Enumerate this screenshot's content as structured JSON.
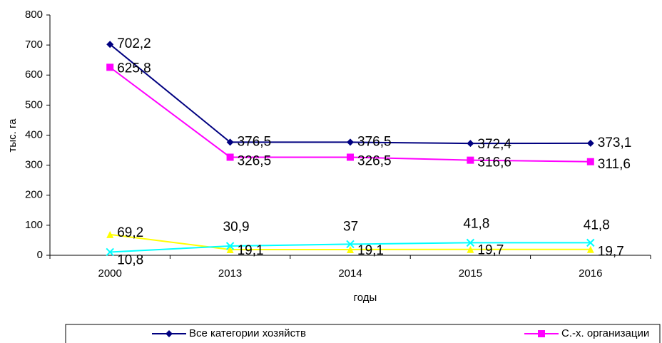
{
  "chart_data": {
    "type": "line",
    "y_label": "тыс. га",
    "x_label": "годы",
    "categories": [
      "2000",
      "2013",
      "2014",
      "2015",
      "2016"
    ],
    "ylim": [
      0,
      800
    ],
    "yticks": [
      0,
      100,
      200,
      300,
      400,
      500,
      600,
      700,
      800
    ],
    "grid": false,
    "legend": "bottom",
    "series": [
      {
        "name": "Все категории хозяйств",
        "color": "#000080",
        "marker": "diamond",
        "values": [
          702.2,
          376.5,
          376.5,
          372.4,
          373.1
        ],
        "value_labels": [
          "702,2",
          "376,5",
          "376,5",
          "372,4",
          "373,1"
        ]
      },
      {
        "name": "С.-х. организации",
        "color": "#ff00ff",
        "marker": "square",
        "values": [
          625.8,
          326.5,
          326.5,
          316.6,
          311.6
        ],
        "value_labels": [
          "625,8",
          "326,5",
          "326,5",
          "316,6",
          "311,6"
        ]
      },
      {
        "color": "#ffff00",
        "marker": "triangle",
        "values": [
          69.2,
          19.1,
          19.1,
          19.7,
          19.7
        ],
        "value_labels": [
          "69,2",
          "19,1",
          "19,1",
          "19,7",
          "19,7"
        ]
      },
      {
        "color": "#00ffff",
        "marker": "cross",
        "values": [
          10.8,
          30.9,
          37,
          41.8,
          41.8
        ],
        "value_labels": [
          "10,8",
          "30,9",
          "37",
          "41,8",
          "41,8"
        ]
      }
    ]
  }
}
